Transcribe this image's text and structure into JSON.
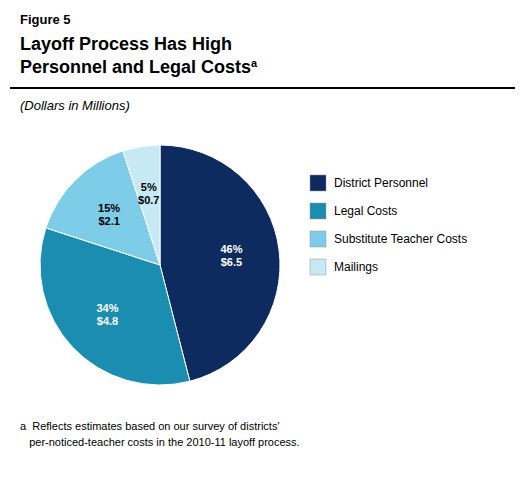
{
  "chart_data": {
    "type": "pie",
    "figure_label": "Figure 5",
    "title": "Layoff Process Has High\nPersonnel and Legal Costs",
    "title_superscript": "a",
    "subtitle": "(Dollars in Millions)",
    "categories": [
      "District Personnel",
      "Legal Costs",
      "Substitute Teacher Costs",
      "Mailings"
    ],
    "values": [
      46,
      34,
      15,
      5
    ],
    "value_labels": [
      "46%\n$6.5",
      "34%\n$4.8",
      "15%\n$2.1",
      "5%\n$0.7"
    ],
    "colors": [
      "#0d2b5e",
      "#1a8db0",
      "#7ecde8",
      "#c6e9f5"
    ],
    "data_labels": true,
    "legend": "right",
    "footnote": "a  Reflects estimates based on our survey of districts'\n   per-noticed-teacher costs in the 2010-11 layoff process."
  }
}
